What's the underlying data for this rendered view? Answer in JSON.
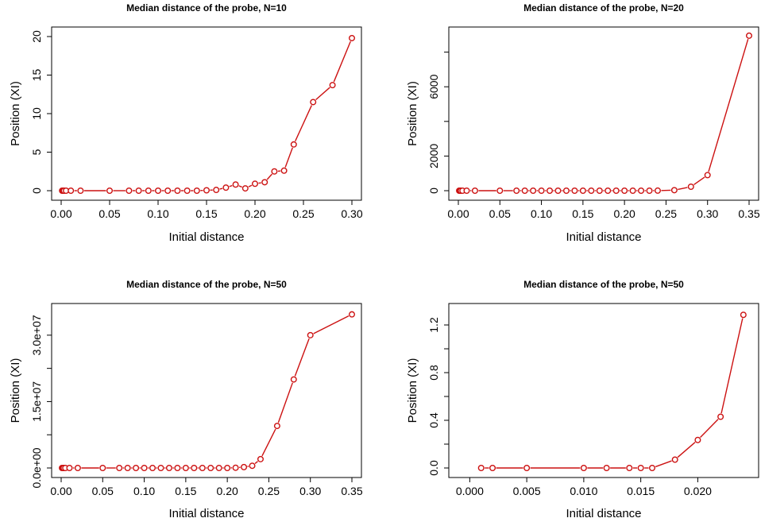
{
  "chart_data": [
    {
      "type": "line",
      "title": "Median distance of the probe, N=10",
      "xlabel": "Initial distance",
      "ylabel": "Position (XI)",
      "xlim": [
        0,
        0.3
      ],
      "ylim": [
        0,
        20
      ],
      "x_ticks": [
        "0.00",
        "0.05",
        "0.10",
        "0.15",
        "0.20",
        "0.25",
        "0.30"
      ],
      "x_tick_values": [
        0,
        0.05,
        0.1,
        0.15,
        0.2,
        0.25,
        0.3
      ],
      "y_ticks": [
        "0",
        "5",
        "10",
        "15",
        "20"
      ],
      "y_tick_values": [
        0,
        5,
        10,
        15,
        20
      ],
      "grid": false,
      "series": [
        {
          "color": "#cc1111",
          "x": [
            0.001,
            0.002,
            0.003,
            0.005,
            0.01,
            0.02,
            0.05,
            0.07,
            0.08,
            0.09,
            0.1,
            0.11,
            0.12,
            0.13,
            0.14,
            0.15,
            0.16,
            0.17,
            0.18,
            0.19,
            0.2,
            0.21,
            0.22,
            0.23,
            0.24,
            0.26,
            0.28,
            0.3
          ],
          "y": [
            0,
            0,
            0,
            0,
            0,
            0,
            0,
            0,
            0,
            0,
            0,
            0,
            0,
            0,
            0,
            0.05,
            0.1,
            0.4,
            0.8,
            0.3,
            0.9,
            1.1,
            2.5,
            2.6,
            6.0,
            11.5,
            13.7,
            19.8
          ]
        }
      ]
    },
    {
      "type": "line",
      "title": "Median distance of the probe, N=20",
      "xlabel": "Initial distance",
      "ylabel": "Position (XI)",
      "xlim": [
        0,
        0.35
      ],
      "ylim": [
        0,
        8900
      ],
      "x_ticks": [
        "0.00",
        "0.05",
        "0.10",
        "0.15",
        "0.20",
        "0.25",
        "0.30",
        "0.35"
      ],
      "x_tick_values": [
        0,
        0.05,
        0.1,
        0.15,
        0.2,
        0.25,
        0.3,
        0.35
      ],
      "y_ticks": [
        "0",
        "2000",
        "6000"
      ],
      "y_tick_values": [
        0,
        2000,
        6000
      ],
      "y_minor_tick_values": [
        4000,
        8000
      ],
      "grid": false,
      "series": [
        {
          "color": "#cc1111",
          "x": [
            0.001,
            0.002,
            0.003,
            0.005,
            0.01,
            0.02,
            0.05,
            0.07,
            0.08,
            0.09,
            0.1,
            0.11,
            0.12,
            0.13,
            0.14,
            0.15,
            0.16,
            0.17,
            0.18,
            0.19,
            0.2,
            0.21,
            0.22,
            0.23,
            0.24,
            0.26,
            0.28,
            0.3,
            0.35
          ],
          "y": [
            0,
            0,
            0,
            0,
            0,
            0,
            0,
            0,
            0,
            0,
            0,
            0,
            0,
            0,
            0,
            0,
            0,
            0,
            0,
            0,
            0,
            0,
            0,
            0,
            5,
            30,
            230,
            900,
            8950
          ]
        }
      ]
    },
    {
      "type": "line",
      "title": "Median distance of the probe, N=50",
      "xlabel": "Initial distance",
      "ylabel": "Position (XI)",
      "xlim": [
        0,
        0.35
      ],
      "ylim": [
        0,
        35000000
      ],
      "x_ticks": [
        "0.00",
        "0.05",
        "0.10",
        "0.15",
        "0.20",
        "0.25",
        "0.30",
        "0.35"
      ],
      "x_tick_values": [
        0,
        0.05,
        0.1,
        0.15,
        0.2,
        0.25,
        0.3,
        0.35
      ],
      "y_ticks": [
        "0.0e+00",
        "1.5e+07",
        "3.0e+07"
      ],
      "y_tick_values": [
        0,
        15000000,
        30000000
      ],
      "y_minor_tick_values": [
        7500000,
        22500000
      ],
      "grid": false,
      "series": [
        {
          "color": "#cc1111",
          "x": [
            0.001,
            0.002,
            0.003,
            0.005,
            0.01,
            0.02,
            0.05,
            0.07,
            0.08,
            0.09,
            0.1,
            0.11,
            0.12,
            0.13,
            0.14,
            0.15,
            0.16,
            0.17,
            0.18,
            0.19,
            0.2,
            0.21,
            0.22,
            0.23,
            0.24,
            0.26,
            0.28,
            0.3,
            0.35
          ],
          "y": [
            0,
            0,
            0,
            0,
            0,
            0,
            0,
            0,
            0,
            0,
            0,
            0,
            0,
            0,
            0,
            0,
            0,
            0,
            0,
            0,
            0,
            50000,
            200000,
            500000,
            2000000,
            9500000,
            20000000,
            30000000,
            34700000
          ]
        }
      ]
    },
    {
      "type": "line",
      "title": "Median distance of the probe, N=50",
      "xlabel": "Initial distance",
      "ylabel": "Position (XI)",
      "xlim": [
        -0.001,
        0.0245
      ],
      "ylim": [
        0,
        1.3
      ],
      "x_ticks": [
        "0.000",
        "0.005",
        "0.010",
        "0.015",
        "0.020"
      ],
      "x_tick_values": [
        0,
        0.005,
        0.01,
        0.015,
        0.02
      ],
      "y_ticks": [
        "0.0",
        "0.4",
        "0.8",
        "1.2"
      ],
      "y_tick_values": [
        0,
        0.4,
        0.8,
        1.2
      ],
      "y_minor_tick_values": [
        0.2,
        0.6,
        1.0
      ],
      "grid": false,
      "series": [
        {
          "color": "#cc1111",
          "x": [
            0.001,
            0.002,
            0.005,
            0.01,
            0.012,
            0.014,
            0.015,
            0.016,
            0.018,
            0.02,
            0.022,
            0.024
          ],
          "y": [
            0,
            0,
            0,
            0,
            0,
            0,
            0,
            0,
            0.07,
            0.235,
            0.43,
            1.285
          ]
        }
      ]
    }
  ]
}
